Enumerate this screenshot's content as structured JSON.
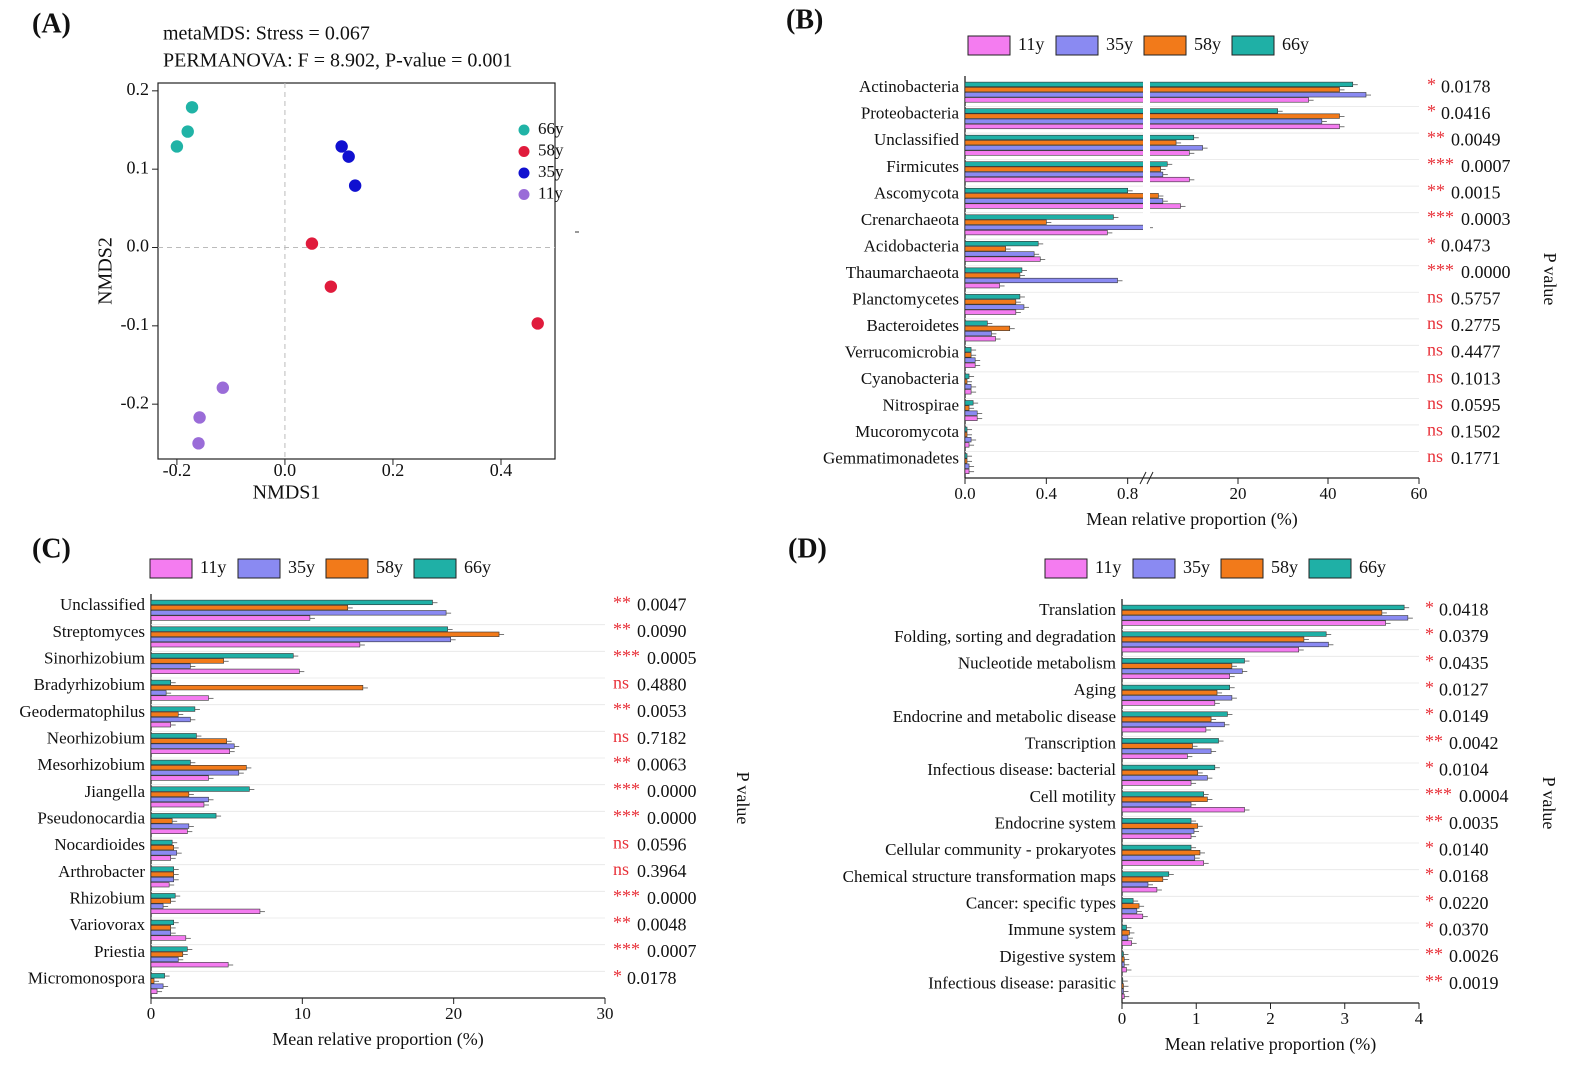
{
  "colors": {
    "11y": "#f47cf0",
    "35y": "#8a8af2",
    "58y": "#f27a1a",
    "66y": "#1fb0a6",
    "star": "#e8323a",
    "ns": "#e8323a"
  },
  "chart_data": [
    {
      "id": "A",
      "type": "scatter",
      "panel_label": "(A)",
      "title": "metaMDS: Stress = 0.067",
      "subtitle": "PERMANOVA: F = 8.902, P-value = 0.001",
      "xlabel": "NMDS1",
      "ylabel": "NMDS2",
      "xlim": [
        -0.235,
        0.5
      ],
      "ylim": [
        -0.27,
        0.21
      ],
      "xticks": [
        -0.2,
        0.0,
        0.2,
        0.4
      ],
      "xtick_labels": [
        "-0.2",
        "0.0",
        "0.2",
        "0.4"
      ],
      "yticks": [
        0.2,
        0.1,
        0.0,
        -0.1,
        -0.2
      ],
      "ytick_labels": [
        "0.2",
        "0.1",
        "0.0",
        "-0.1",
        "-0.2"
      ],
      "legend": [
        "66y",
        "58y",
        "35y",
        "11y"
      ],
      "series": [
        {
          "name": "66y",
          "color": "#20b3a6",
          "points": [
            [
              -0.172,
              0.179
            ],
            [
              -0.18,
              0.148
            ],
            [
              -0.2,
              0.129
            ]
          ]
        },
        {
          "name": "58y",
          "color": "#e01b3c",
          "points": [
            [
              0.05,
              0.005
            ],
            [
              0.085,
              -0.05
            ],
            [
              0.468,
              -0.097
            ]
          ]
        },
        {
          "name": "35y",
          "color": "#1010d0",
          "points": [
            [
              0.105,
              0.129
            ],
            [
              0.118,
              0.116
            ],
            [
              0.13,
              0.079
            ]
          ]
        },
        {
          "name": "11y",
          "color": "#9a6cd8",
          "points": [
            [
              -0.115,
              -0.179
            ],
            [
              -0.158,
              -0.217
            ],
            [
              -0.16,
              -0.25
            ]
          ]
        }
      ]
    },
    {
      "id": "B",
      "type": "bar",
      "orientation": "horizontal",
      "panel_label": "(B)",
      "xlabel": "Mean relative proportion (%)",
      "right_label": "P value",
      "legend": [
        "11y",
        "35y",
        "58y",
        "66y"
      ],
      "xticks": [
        "0.0",
        "0.4",
        "0.8",
        "20",
        "40",
        "60"
      ],
      "axis_break": {
        "low": [
          0,
          0.9
        ],
        "high": [
          0,
          60
        ]
      },
      "categories": [
        "Actinobacteria",
        "Proteobacteria",
        "Unclassified",
        "Firmicutes",
        "Ascomycota",
        "Crenarchaeota",
        "Acidobacteria",
        "Thaumarchaeota",
        "Planctomycetes",
        "Bacteroidetes",
        "Verrucomicrobia",
        "Cyanobacteria",
        "Nitrospirae",
        "Mucoromycota",
        "Gemmatimonadetes"
      ],
      "series": [
        {
          "name": "11y",
          "values": [
            35,
            42,
            8,
            8,
            6,
            0.7,
            0.37,
            0.17,
            0.25,
            0.15,
            0.05,
            0.03,
            0.06,
            0.02,
            0.02
          ]
        },
        {
          "name": "35y",
          "values": [
            48,
            38,
            11,
            2,
            2,
            0.9,
            0.34,
            0.75,
            0.29,
            0.13,
            0.05,
            0.03,
            0.06,
            0.03,
            0.02
          ]
        },
        {
          "name": "58y",
          "values": [
            42,
            42,
            5,
            1.5,
            1,
            0.4,
            0.2,
            0.27,
            0.25,
            0.22,
            0.03,
            0.01,
            0.02,
            0.01,
            0.01
          ]
        },
        {
          "name": "66y",
          "values": [
            45,
            28,
            9,
            3,
            0.8,
            0.73,
            0.36,
            0.28,
            0.27,
            0.11,
            0.03,
            0.02,
            0.04,
            0.01,
            0.01
          ]
        }
      ],
      "significance": [
        "*",
        "*",
        "**",
        "***",
        "**",
        "***",
        "*",
        "***",
        "ns",
        "ns",
        "ns",
        "ns",
        "ns",
        "ns",
        "ns"
      ],
      "p_values": [
        "0.0178",
        "0.0416",
        "0.0049",
        "0.0007",
        "0.0015",
        "0.0003",
        "0.0473",
        "0.0000",
        "0.5757",
        "0.2775",
        "0.4477",
        "0.1013",
        "0.0595",
        "0.1502",
        "0.1771"
      ]
    },
    {
      "id": "C",
      "type": "bar",
      "orientation": "horizontal",
      "panel_label": "(C)",
      "xlabel": "Mean relative proportion (%)",
      "right_label": "P value",
      "legend": [
        "11y",
        "35y",
        "58y",
        "66y"
      ],
      "xlim": [
        0,
        30
      ],
      "xticks": [
        0,
        10,
        20,
        30
      ],
      "categories": [
        "Unclassified",
        "Streptomyces",
        "Sinorhizobium",
        "Bradyrhizobium",
        "Geodermatophilus",
        "Neorhizobium",
        "Mesorhizobium",
        "Jiangella",
        "Pseudonocardia",
        "Nocardioides",
        "Arthrobacter",
        "Rhizobium",
        "Variovorax",
        "Priestia",
        "Micromonospora"
      ],
      "series": [
        {
          "name": "11y",
          "values": [
            10.5,
            13.8,
            9.8,
            3.8,
            1.3,
            5.2,
            3.8,
            3.5,
            2.4,
            1.3,
            1.2,
            7.2,
            2.3,
            5.1,
            0.4
          ]
        },
        {
          "name": "35y",
          "values": [
            19.5,
            19.8,
            2.6,
            1.0,
            2.6,
            5.5,
            5.8,
            3.8,
            2.5,
            1.7,
            1.5,
            0.8,
            1.3,
            1.8,
            0.8
          ]
        },
        {
          "name": "58y",
          "values": [
            13.0,
            23.0,
            4.8,
            14.0,
            1.8,
            5.0,
            6.3,
            2.5,
            1.4,
            1.5,
            1.5,
            1.3,
            1.3,
            2.1,
            0.2
          ]
        },
        {
          "name": "66y",
          "values": [
            18.6,
            19.6,
            9.4,
            1.3,
            2.9,
            3.0,
            2.6,
            6.5,
            4.3,
            1.4,
            1.5,
            1.6,
            1.5,
            2.4,
            0.9
          ]
        }
      ],
      "significance": [
        "**",
        "**",
        "***",
        "ns",
        "**",
        "ns",
        "**",
        "***",
        "***",
        "ns",
        "ns",
        "***",
        "**",
        "***",
        "*"
      ],
      "p_values": [
        "0.0047",
        "0.0090",
        "0.0005",
        "0.4880",
        "0.0053",
        "0.7182",
        "0.0063",
        "0.0000",
        "0.0000",
        "0.0596",
        "0.3964",
        "0.0000",
        "0.0048",
        "0.0007",
        "0.0178"
      ]
    },
    {
      "id": "D",
      "type": "bar",
      "orientation": "horizontal",
      "panel_label": "(D)",
      "xlabel": "Mean relative proportion (%)",
      "right_label": "P value",
      "legend": [
        "11y",
        "35y",
        "58y",
        "66y"
      ],
      "xlim": [
        0,
        4
      ],
      "xticks": [
        0,
        1,
        2,
        3,
        4
      ],
      "categories": [
        "Translation",
        "Folding, sorting and degradation",
        "Nucleotide metabolism",
        "Aging",
        "Endocrine and metabolic disease",
        "Transcription",
        "Infectious disease: bacterial",
        "Cell motility",
        "Endocrine system",
        "Cellular community - prokaryotes",
        "Chemical structure transformation maps",
        "Cancer: specific types",
        "Immune system",
        "Digestive system",
        "Infectious disease: parasitic"
      ],
      "series": [
        {
          "name": "11y",
          "values": [
            3.55,
            2.38,
            1.45,
            1.25,
            1.13,
            0.88,
            0.93,
            1.65,
            0.93,
            1.1,
            0.47,
            0.28,
            0.13,
            0.06,
            0.03
          ]
        },
        {
          "name": "35y",
          "values": [
            3.85,
            2.78,
            1.62,
            1.48,
            1.38,
            1.2,
            1.15,
            0.93,
            0.97,
            0.98,
            0.35,
            0.2,
            0.08,
            0.03,
            0.02
          ]
        },
        {
          "name": "58y",
          "values": [
            3.5,
            2.45,
            1.48,
            1.28,
            1.2,
            0.95,
            1.02,
            1.15,
            1.02,
            1.05,
            0.55,
            0.23,
            0.1,
            0.03,
            0.02
          ]
        },
        {
          "name": "66y",
          "values": [
            3.8,
            2.75,
            1.65,
            1.45,
            1.42,
            1.3,
            1.25,
            1.1,
            0.93,
            0.93,
            0.63,
            0.15,
            0.06,
            0.02,
            0.01
          ]
        }
      ],
      "significance": [
        "*",
        "*",
        "*",
        "*",
        "*",
        "**",
        "*",
        "***",
        "**",
        "*",
        "*",
        "*",
        "*",
        "**",
        "**"
      ],
      "p_values": [
        "0.0418",
        "0.0379",
        "0.0435",
        "0.0127",
        "0.0149",
        "0.0042",
        "0.0104",
        "0.0004",
        "0.0035",
        "0.0140",
        "0.0168",
        "0.0220",
        "0.0370",
        "0.0026",
        "0.0019"
      ]
    }
  ]
}
